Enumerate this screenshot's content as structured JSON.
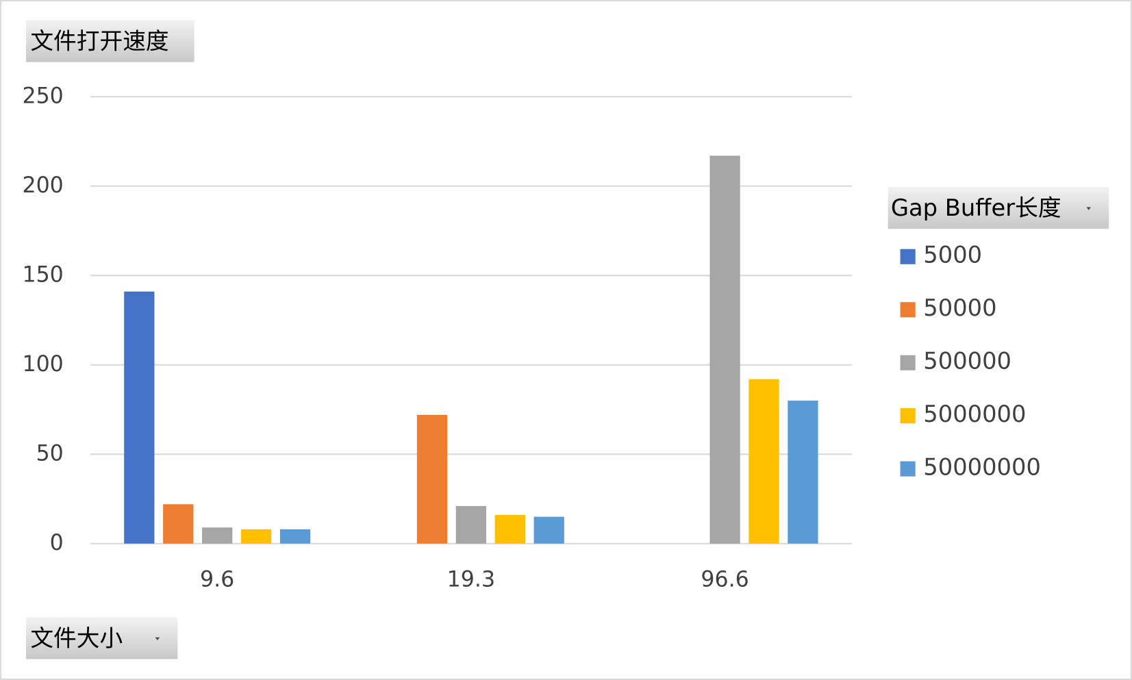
{
  "chart_data": {
    "type": "bar",
    "title": "文件打开速度",
    "x_field": "文件大小",
    "legend_title": "Gap Buffer长度",
    "legend_position": "right",
    "grid": true,
    "categories": [
      "9.6",
      "19.3",
      "96.6"
    ],
    "series": [
      {
        "name": "5000",
        "color": "#4472c4",
        "values": [
          141,
          null,
          null
        ]
      },
      {
        "name": "50000",
        "color": "#ed7d31",
        "values": [
          22,
          72,
          null
        ]
      },
      {
        "name": "500000",
        "color": "#a5a5a5",
        "values": [
          9,
          21,
          217
        ]
      },
      {
        "name": "5000000",
        "color": "#ffc000",
        "values": [
          8,
          16,
          92
        ]
      },
      {
        "name": "50000000",
        "color": "#5b9bd5",
        "values": [
          8,
          15,
          80
        ]
      }
    ],
    "ylim": [
      0,
      250
    ],
    "yticks": [
      0,
      50,
      100,
      150,
      200,
      250
    ]
  }
}
